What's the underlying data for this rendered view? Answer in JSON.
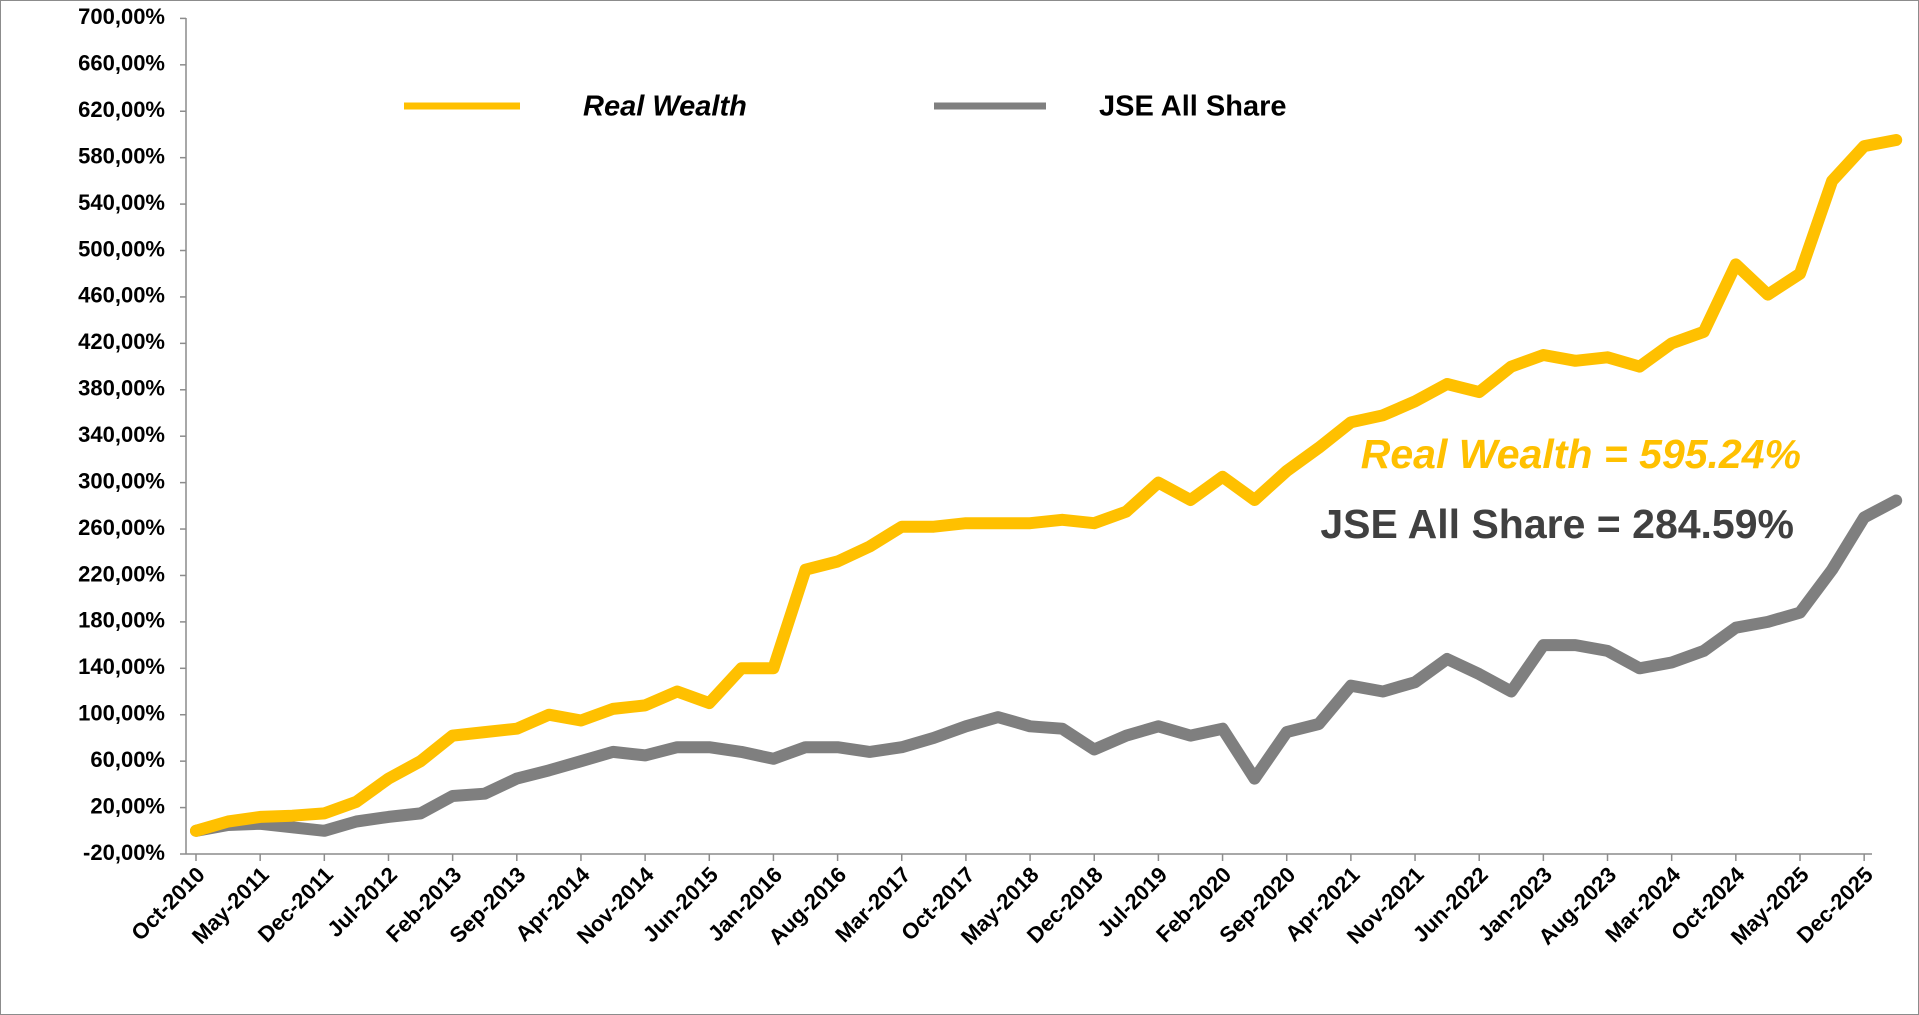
{
  "chart_data": {
    "type": "line",
    "categories": [
      "Oct-2010",
      null,
      "May-2011",
      null,
      "Dec-2011",
      null,
      "Jul-2012",
      null,
      "Feb-2013",
      null,
      "Sep-2013",
      null,
      "Apr-2014",
      null,
      "Nov-2014",
      null,
      "Jun-2015",
      null,
      "Jan-2016",
      null,
      "Aug-2016",
      null,
      "Mar-2017",
      null,
      "Oct-2017",
      null,
      "May-2018",
      null,
      "Dec-2018",
      null,
      "Jul-2019",
      null,
      "Feb-2020",
      null,
      "Sep-2020",
      null,
      "Apr-2021",
      null,
      "Nov-2021",
      null,
      "Jun-2022",
      null,
      "Jan-2023",
      null,
      "Aug-2023",
      null,
      "Mar-2024",
      null,
      "Oct-2024",
      null,
      "May-2025",
      null,
      "Dec-2025",
      null
    ],
    "series": [
      {
        "name": "Real Wealth",
        "color": "#FFC000",
        "values": [
          0,
          8,
          12,
          13,
          15,
          25,
          45,
          60,
          82,
          85,
          88,
          100,
          95,
          105,
          108,
          120,
          110,
          140,
          140,
          225,
          232,
          245,
          262,
          262,
          265,
          265,
          265,
          268,
          265,
          275,
          300,
          285,
          305,
          285,
          310,
          330,
          352,
          358,
          370,
          385,
          378,
          400,
          410,
          405,
          408,
          400,
          420,
          430,
          488,
          462,
          480,
          560,
          590,
          595.24
        ]
      },
      {
        "name": "JSE All Share",
        "color": "#7F7F7F",
        "values": [
          0,
          5,
          6,
          3,
          0,
          8,
          12,
          15,
          30,
          32,
          45,
          52,
          60,
          68,
          65,
          72,
          72,
          68,
          62,
          72,
          72,
          68,
          72,
          80,
          90,
          98,
          90,
          88,
          70,
          82,
          90,
          82,
          88,
          45,
          85,
          92,
          125,
          120,
          128,
          148,
          135,
          120,
          160,
          160,
          155,
          140,
          145,
          155,
          175,
          180,
          188,
          225,
          270,
          284.59
        ]
      }
    ],
    "annotations": [
      {
        "text": "Real Wealth = 595.24%",
        "color": "#FFC000"
      },
      {
        "text": "JSE All Share = 284.59%",
        "color": "#404040"
      }
    ],
    "ylim": [
      -20,
      700
    ],
    "yticks": [
      {
        "value": -20,
        "label": "-20,00%"
      },
      {
        "value": 20,
        "label": "20,00%"
      },
      {
        "value": 60,
        "label": "60,00%"
      },
      {
        "value": 100,
        "label": "100,00%"
      },
      {
        "value": 140,
        "label": "140,00%"
      },
      {
        "value": 180,
        "label": "180,00%"
      },
      {
        "value": 220,
        "label": "220,00%"
      },
      {
        "value": 260,
        "label": "260,00%"
      },
      {
        "value": 300,
        "label": "300,00%"
      },
      {
        "value": 340,
        "label": "340,00%"
      },
      {
        "value": 380,
        "label": "380,00%"
      },
      {
        "value": 420,
        "label": "420,00%"
      },
      {
        "value": 460,
        "label": "460,00%"
      },
      {
        "value": 500,
        "label": "500,00%"
      },
      {
        "value": 540,
        "label": "540,00%"
      },
      {
        "value": 580,
        "label": "580,00%"
      },
      {
        "value": 620,
        "label": "620,00%"
      },
      {
        "value": 660,
        "label": "660,00%"
      },
      {
        "value": 700,
        "label": "700,00%"
      }
    ],
    "grid": false
  }
}
